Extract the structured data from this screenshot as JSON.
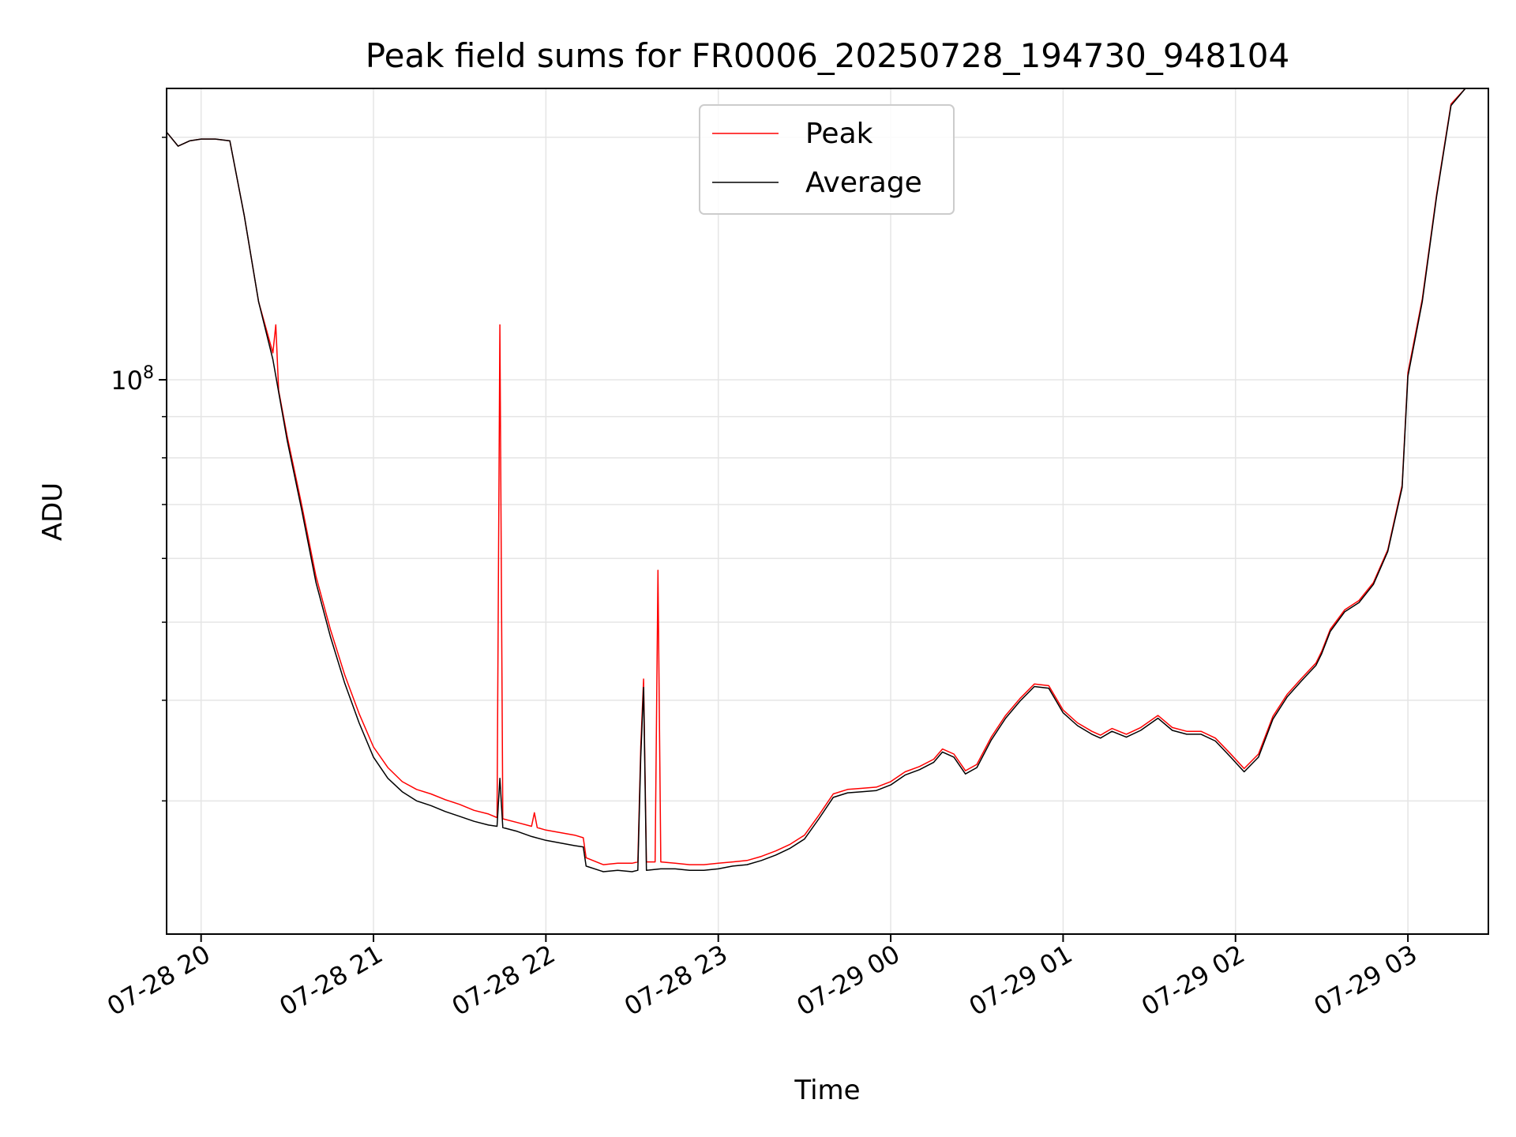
{
  "chart_data": {
    "type": "line",
    "title": "Peak field sums for FR0006_20250728_194730_948104",
    "xlabel": "Time",
    "ylabel": "ADU",
    "yscale": "log",
    "grid": true,
    "legend_position": "top-center",
    "x_ticks": [
      "07-28 20",
      "07-28 21",
      "07-28 22",
      "07-28 23",
      "07-29 00",
      "07-29 01",
      "07-29 02",
      "07-29 03"
    ],
    "x_range": [
      "07-28 19:48",
      "07-29 03:28"
    ],
    "y_ticks": [
      {
        "value": 100000000,
        "label": "10^8"
      }
    ],
    "ylim": [
      20500000,
      230000000
    ],
    "series": [
      {
        "name": "Peak",
        "color": "#ff0000",
        "points": [
          [
            "07-28 19:48",
            203000000
          ],
          [
            "07-28 19:52",
            195000000
          ],
          [
            "07-28 19:56",
            198000000
          ],
          [
            "07-28 20:00",
            199000000
          ],
          [
            "07-28 20:05",
            199000000
          ],
          [
            "07-28 20:10",
            198000000
          ],
          [
            "07-28 20:15",
            160000000
          ],
          [
            "07-28 20:20",
            125000000
          ],
          [
            "07-28 20:25",
            108000000
          ],
          [
            "07-28 20:26",
            117000000
          ],
          [
            "07-28 20:27",
            97000000
          ],
          [
            "07-28 20:30",
            85000000
          ],
          [
            "07-28 20:35",
            70000000
          ],
          [
            "07-28 20:40",
            57000000
          ],
          [
            "07-28 20:45",
            49000000
          ],
          [
            "07-28 20:50",
            43000000
          ],
          [
            "07-28 20:55",
            38500000
          ],
          [
            "07-28 21:00",
            35000000
          ],
          [
            "07-28 21:05",
            33000000
          ],
          [
            "07-28 21:10",
            31700000
          ],
          [
            "07-28 21:15",
            31000000
          ],
          [
            "07-28 21:20",
            30600000
          ],
          [
            "07-28 21:25",
            30100000
          ],
          [
            "07-28 21:30",
            29700000
          ],
          [
            "07-28 21:35",
            29200000
          ],
          [
            "07-28 21:40",
            28900000
          ],
          [
            "07-28 21:43",
            28600000
          ],
          [
            "07-28 21:44",
            117000000
          ],
          [
            "07-28 21:45",
            28500000
          ],
          [
            "07-28 21:50",
            28200000
          ],
          [
            "07-28 21:55",
            27900000
          ],
          [
            "07-28 21:56",
            29000000
          ],
          [
            "07-28 21:57",
            27800000
          ],
          [
            "07-28 22:00",
            27600000
          ],
          [
            "07-28 22:05",
            27400000
          ],
          [
            "07-28 22:10",
            27200000
          ],
          [
            "07-28 22:13",
            27000000
          ],
          [
            "07-28 22:14",
            25500000
          ],
          [
            "07-28 22:20",
            25000000
          ],
          [
            "07-28 22:25",
            25100000
          ],
          [
            "07-28 22:30",
            25100000
          ],
          [
            "07-28 22:32",
            25200000
          ],
          [
            "07-28 22:33",
            35000000
          ],
          [
            "07-28 22:34",
            42500000
          ],
          [
            "07-28 22:35",
            25200000
          ],
          [
            "07-28 22:38",
            25200000
          ],
          [
            "07-28 22:39",
            58000000
          ],
          [
            "07-28 22:40",
            25200000
          ],
          [
            "07-28 22:45",
            25100000
          ],
          [
            "07-28 22:50",
            25000000
          ],
          [
            "07-28 22:55",
            25000000
          ],
          [
            "07-28 23:00",
            25100000
          ],
          [
            "07-28 23:05",
            25200000
          ],
          [
            "07-28 23:10",
            25300000
          ],
          [
            "07-28 23:15",
            25600000
          ],
          [
            "07-28 23:20",
            26000000
          ],
          [
            "07-28 23:25",
            26500000
          ],
          [
            "07-28 23:30",
            27200000
          ],
          [
            "07-28 23:35",
            28800000
          ],
          [
            "07-28 23:40",
            30600000
          ],
          [
            "07-28 23:45",
            31000000
          ],
          [
            "07-28 23:50",
            31100000
          ],
          [
            "07-28 23:55",
            31200000
          ],
          [
            "07-29 00:00",
            31700000
          ],
          [
            "07-29 00:05",
            32600000
          ],
          [
            "07-29 00:10",
            33100000
          ],
          [
            "07-29 00:15",
            33800000
          ],
          [
            "07-29 00:18",
            34800000
          ],
          [
            "07-29 00:22",
            34300000
          ],
          [
            "07-29 00:26",
            32700000
          ],
          [
            "07-29 00:30",
            33300000
          ],
          [
            "07-29 00:35",
            36000000
          ],
          [
            "07-29 00:40",
            38300000
          ],
          [
            "07-29 00:45",
            40200000
          ],
          [
            "07-29 00:50",
            41900000
          ],
          [
            "07-29 00:55",
            41700000
          ],
          [
            "07-29 01:00",
            38900000
          ],
          [
            "07-29 01:05",
            37500000
          ],
          [
            "07-29 01:10",
            36600000
          ],
          [
            "07-29 01:13",
            36200000
          ],
          [
            "07-29 01:17",
            36900000
          ],
          [
            "07-29 01:22",
            36300000
          ],
          [
            "07-29 01:27",
            37000000
          ],
          [
            "07-29 01:33",
            38300000
          ],
          [
            "07-29 01:38",
            37000000
          ],
          [
            "07-29 01:43",
            36600000
          ],
          [
            "07-29 01:48",
            36600000
          ],
          [
            "07-29 01:53",
            35900000
          ],
          [
            "07-29 01:58",
            34400000
          ],
          [
            "07-29 02:03",
            32900000
          ],
          [
            "07-29 02:08",
            34300000
          ],
          [
            "07-29 02:13",
            38200000
          ],
          [
            "07-29 02:18",
            40700000
          ],
          [
            "07-29 02:23",
            42600000
          ],
          [
            "07-29 02:28",
            44500000
          ],
          [
            "07-29 02:30",
            46000000
          ],
          [
            "07-29 02:33",
            49000000
          ],
          [
            "07-29 02:38",
            51800000
          ],
          [
            "07-29 02:43",
            53200000
          ],
          [
            "07-29 02:48",
            56000000
          ],
          [
            "07-29 02:53",
            61500000
          ],
          [
            "07-29 02:58",
            74000000
          ],
          [
            "07-29 03:00",
            102000000
          ],
          [
            "07-29 03:05",
            126000000
          ],
          [
            "07-29 03:10",
            170000000
          ],
          [
            "07-29 03:15",
            220000000
          ],
          [
            "07-29 03:20",
            232000000
          ],
          [
            "07-29 03:28",
            232000000
          ]
        ]
      },
      {
        "name": "Average",
        "color": "#000000",
        "points": [
          [
            "07-28 19:48",
            203000000
          ],
          [
            "07-28 19:52",
            195000000
          ],
          [
            "07-28 19:56",
            198000000
          ],
          [
            "07-28 20:00",
            199000000
          ],
          [
            "07-28 20:05",
            199000000
          ],
          [
            "07-28 20:10",
            198000000
          ],
          [
            "07-28 20:15",
            160000000
          ],
          [
            "07-28 20:20",
            125000000
          ],
          [
            "07-28 20:25",
            106000000
          ],
          [
            "07-28 20:30",
            84000000
          ],
          [
            "07-28 20:35",
            69000000
          ],
          [
            "07-28 20:40",
            56000000
          ],
          [
            "07-28 20:45",
            48000000
          ],
          [
            "07-28 20:50",
            42000000
          ],
          [
            "07-28 20:55",
            37500000
          ],
          [
            "07-28 21:00",
            34000000
          ],
          [
            "07-28 21:05",
            32000000
          ],
          [
            "07-28 21:10",
            30800000
          ],
          [
            "07-28 21:15",
            30000000
          ],
          [
            "07-28 21:20",
            29600000
          ],
          [
            "07-28 21:25",
            29100000
          ],
          [
            "07-28 21:30",
            28700000
          ],
          [
            "07-28 21:35",
            28300000
          ],
          [
            "07-28 21:40",
            28000000
          ],
          [
            "07-28 21:43",
            27900000
          ],
          [
            "07-28 21:44",
            32000000
          ],
          [
            "07-28 21:45",
            27800000
          ],
          [
            "07-28 21:50",
            27500000
          ],
          [
            "07-28 21:55",
            27100000
          ],
          [
            "07-28 22:00",
            26800000
          ],
          [
            "07-28 22:05",
            26600000
          ],
          [
            "07-28 22:10",
            26400000
          ],
          [
            "07-28 22:13",
            26300000
          ],
          [
            "07-28 22:14",
            24900000
          ],
          [
            "07-28 22:20",
            24500000
          ],
          [
            "07-28 22:25",
            24600000
          ],
          [
            "07-28 22:30",
            24500000
          ],
          [
            "07-28 22:32",
            24600000
          ],
          [
            "07-28 22:33",
            34000000
          ],
          [
            "07-28 22:34",
            41500000
          ],
          [
            "07-28 22:35",
            24600000
          ],
          [
            "07-28 22:40",
            24700000
          ],
          [
            "07-28 22:45",
            24700000
          ],
          [
            "07-28 22:50",
            24600000
          ],
          [
            "07-28 22:55",
            24600000
          ],
          [
            "07-28 23:00",
            24700000
          ],
          [
            "07-28 23:05",
            24900000
          ],
          [
            "07-28 23:10",
            25000000
          ],
          [
            "07-28 23:15",
            25300000
          ],
          [
            "07-28 23:20",
            25700000
          ],
          [
            "07-28 23:25",
            26200000
          ],
          [
            "07-28 23:30",
            26900000
          ],
          [
            "07-28 23:35",
            28500000
          ],
          [
            "07-28 23:40",
            30300000
          ],
          [
            "07-28 23:45",
            30700000
          ],
          [
            "07-28 23:50",
            30800000
          ],
          [
            "07-28 23:55",
            30900000
          ],
          [
            "07-29 00:00",
            31400000
          ],
          [
            "07-29 00:05",
            32300000
          ],
          [
            "07-29 00:10",
            32800000
          ],
          [
            "07-29 00:15",
            33500000
          ],
          [
            "07-29 00:18",
            34500000
          ],
          [
            "07-29 00:22",
            34000000
          ],
          [
            "07-29 00:26",
            32400000
          ],
          [
            "07-29 00:30",
            33000000
          ],
          [
            "07-29 00:35",
            35700000
          ],
          [
            "07-29 00:40",
            38000000
          ],
          [
            "07-29 00:45",
            39900000
          ],
          [
            "07-29 00:50",
            41600000
          ],
          [
            "07-29 00:55",
            41400000
          ],
          [
            "07-29 01:00",
            38600000
          ],
          [
            "07-29 01:05",
            37200000
          ],
          [
            "07-29 01:10",
            36300000
          ],
          [
            "07-29 01:13",
            35900000
          ],
          [
            "07-29 01:17",
            36600000
          ],
          [
            "07-29 01:22",
            36000000
          ],
          [
            "07-29 01:27",
            36700000
          ],
          [
            "07-29 01:33",
            38000000
          ],
          [
            "07-29 01:38",
            36700000
          ],
          [
            "07-29 01:43",
            36300000
          ],
          [
            "07-29 01:48",
            36300000
          ],
          [
            "07-29 01:53",
            35600000
          ],
          [
            "07-29 01:58",
            34100000
          ],
          [
            "07-29 02:03",
            32600000
          ],
          [
            "07-29 02:08",
            34000000
          ],
          [
            "07-29 02:13",
            37900000
          ],
          [
            "07-29 02:18",
            40400000
          ],
          [
            "07-29 02:23",
            42300000
          ],
          [
            "07-29 02:28",
            44200000
          ],
          [
            "07-29 02:30",
            45700000
          ],
          [
            "07-29 02:33",
            48700000
          ],
          [
            "07-29 02:38",
            51500000
          ],
          [
            "07-29 02:43",
            52900000
          ],
          [
            "07-29 02:48",
            55700000
          ],
          [
            "07-29 02:53",
            61200000
          ],
          [
            "07-29 02:58",
            73500000
          ],
          [
            "07-29 03:00",
            101000000
          ],
          [
            "07-29 03:05",
            125000000
          ],
          [
            "07-29 03:10",
            169000000
          ],
          [
            "07-29 03:15",
            219000000
          ],
          [
            "07-29 03:20",
            232000000
          ],
          [
            "07-29 03:28",
            232000000
          ]
        ]
      }
    ]
  }
}
